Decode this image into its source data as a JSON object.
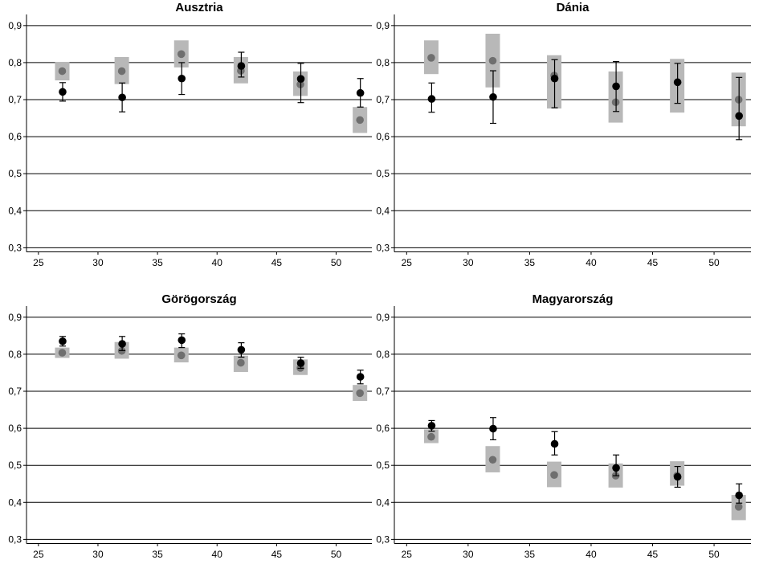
{
  "chart_data": [
    {
      "type": "scatter",
      "title": "Ausztria",
      "xlim": [
        24,
        53
      ],
      "ylim": [
        0.29,
        0.93
      ],
      "xticks": [
        "25",
        "30",
        "35",
        "40",
        "45",
        "50"
      ],
      "yticks": [
        "0,3",
        "0,4",
        "0,5",
        "0,6",
        "0,7",
        "0,8",
        "0,9"
      ],
      "grid": "horizontal",
      "series": [
        {
          "marker": "gray-dot-with-band",
          "x": [
            27,
            32,
            37,
            42,
            47,
            52
          ],
          "values": [
            0.777,
            0.777,
            0.823,
            0.778,
            0.741,
            0.645
          ],
          "lower": [
            0.752,
            0.742,
            0.787,
            0.744,
            0.71,
            0.61
          ],
          "upper": [
            0.802,
            0.815,
            0.86,
            0.815,
            0.776,
            0.68
          ]
        },
        {
          "marker": "black-dot-with-errorbar",
          "x": [
            27,
            32,
            37,
            42,
            47,
            52
          ],
          "values": [
            0.721,
            0.706,
            0.757,
            0.791,
            0.756,
            0.718
          ],
          "lower": [
            0.696,
            0.667,
            0.714,
            0.761,
            0.692,
            0.68
          ],
          "upper": [
            0.746,
            0.745,
            0.8,
            0.828,
            0.798,
            0.757
          ]
        }
      ]
    },
    {
      "type": "scatter",
      "title": "Dánia",
      "xlim": [
        24,
        53
      ],
      "ylim": [
        0.29,
        0.93
      ],
      "xticks": [
        "25",
        "30",
        "35",
        "40",
        "45",
        "50"
      ],
      "yticks": [
        "0,3",
        "0,4",
        "0,5",
        "0,6",
        "0,7",
        "0,8",
        "0,9"
      ],
      "grid": "horizontal",
      "series": [
        {
          "marker": "gray-dot-with-band",
          "x": [
            27,
            32,
            37,
            42,
            47,
            52
          ],
          "values": [
            0.813,
            0.805,
            0.765,
            0.693,
            null,
            0.7
          ],
          "lower": [
            0.769,
            0.733,
            0.676,
            0.638,
            0.665,
            0.628
          ],
          "upper": [
            0.86,
            0.878,
            0.82,
            0.776,
            0.81,
            0.773
          ]
        },
        {
          "marker": "black-dot-with-errorbar",
          "x": [
            27,
            32,
            37,
            42,
            47,
            52
          ],
          "values": [
            0.702,
            0.707,
            0.757,
            0.736,
            0.747,
            0.656
          ],
          "lower": [
            0.666,
            0.636,
            0.678,
            0.668,
            0.69,
            0.592
          ],
          "upper": [
            0.745,
            0.778,
            0.808,
            0.803,
            0.798,
            0.76
          ]
        }
      ]
    },
    {
      "type": "scatter",
      "title": "Görögország",
      "xlim": [
        24,
        53
      ],
      "ylim": [
        0.29,
        0.93
      ],
      "xticks": [
        "25",
        "30",
        "35",
        "40",
        "45",
        "50"
      ],
      "yticks": [
        "0,3",
        "0,4",
        "0,5",
        "0,6",
        "0,7",
        "0,8",
        "0,9"
      ],
      "grid": "horizontal",
      "series": [
        {
          "marker": "gray-dot-with-band",
          "x": [
            27,
            32,
            37,
            42,
            47,
            52
          ],
          "values": [
            0.804,
            0.809,
            0.797,
            0.777,
            0.763,
            0.695
          ],
          "lower": [
            0.79,
            0.788,
            0.778,
            0.752,
            0.744,
            0.674
          ],
          "upper": [
            0.818,
            0.833,
            0.818,
            0.796,
            0.786,
            0.717
          ]
        },
        {
          "marker": "black-dot-with-errorbar",
          "x": [
            27,
            32,
            37,
            42,
            47,
            52
          ],
          "values": [
            0.835,
            0.828,
            0.838,
            0.812,
            0.776,
            0.739
          ],
          "lower": [
            0.822,
            0.81,
            0.818,
            0.792,
            0.762,
            0.72
          ],
          "upper": [
            0.848,
            0.848,
            0.855,
            0.831,
            0.792,
            0.757
          ]
        }
      ]
    },
    {
      "type": "scatter",
      "title": "Magyarország",
      "xlim": [
        24,
        53
      ],
      "ylim": [
        0.29,
        0.93
      ],
      "xticks": [
        "25",
        "30",
        "35",
        "40",
        "45",
        "50"
      ],
      "yticks": [
        "0,3",
        "0,4",
        "0,5",
        "0,6",
        "0,7",
        "0,8",
        "0,9"
      ],
      "grid": "horizontal",
      "series": [
        {
          "marker": "gray-dot-with-band",
          "x": [
            27,
            32,
            37,
            42,
            47,
            52
          ],
          "values": [
            0.577,
            0.515,
            0.474,
            0.472,
            0.472,
            0.388
          ],
          "lower": [
            0.56,
            0.481,
            0.441,
            0.44,
            0.445,
            0.352
          ],
          "upper": [
            0.597,
            0.552,
            0.51,
            0.505,
            0.511,
            0.42
          ]
        },
        {
          "marker": "black-dot-with-errorbar",
          "x": [
            27,
            32,
            37,
            42,
            47,
            52
          ],
          "values": [
            0.607,
            0.599,
            0.558,
            0.493,
            0.469,
            0.419
          ],
          "lower": [
            0.592,
            0.569,
            0.528,
            0.472,
            0.441,
            0.398
          ],
          "upper": [
            0.621,
            0.629,
            0.591,
            0.528,
            0.497,
            0.45
          ]
        }
      ]
    }
  ]
}
